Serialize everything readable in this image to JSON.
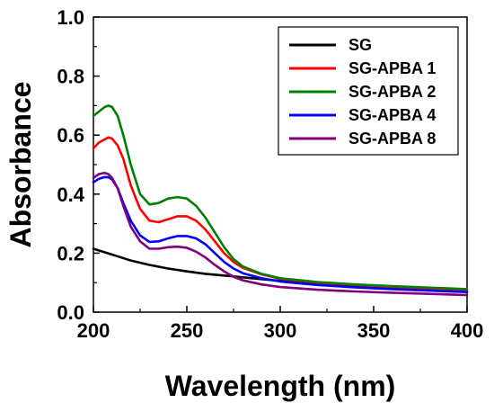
{
  "chart_data": {
    "type": "line",
    "title": "",
    "xlabel": "Wavelength (nm)",
    "ylabel": "Absorbance",
    "xlim": [
      200,
      400
    ],
    "ylim": [
      0.0,
      1.0
    ],
    "xticks": [
      "200",
      "250",
      "300",
      "350",
      "400"
    ],
    "yticks": [
      "0.0",
      "0.2",
      "0.4",
      "0.6",
      "0.8",
      "1.0"
    ],
    "grid": false,
    "legend_position": "top-right",
    "series": [
      {
        "name": "SG",
        "color": "#000000",
        "x": [
          200,
          205,
          210,
          220,
          230,
          240,
          250,
          260,
          270,
          280,
          290,
          300,
          320,
          340,
          360,
          380,
          400
        ],
        "y": [
          0.215,
          0.205,
          0.195,
          0.175,
          0.16,
          0.148,
          0.138,
          0.13,
          0.124,
          0.118,
          0.112,
          0.106,
          0.098,
          0.09,
          0.082,
          0.076,
          0.07
        ]
      },
      {
        "name": "SG-APBA 1",
        "color": "#ff0000",
        "x": [
          200,
          203,
          206,
          208,
          210,
          213,
          216,
          220,
          225,
          230,
          235,
          240,
          245,
          250,
          255,
          260,
          265,
          270,
          275,
          280,
          290,
          300,
          320,
          340,
          360,
          380,
          400
        ],
        "y": [
          0.555,
          0.575,
          0.585,
          0.592,
          0.588,
          0.565,
          0.52,
          0.43,
          0.35,
          0.31,
          0.305,
          0.315,
          0.325,
          0.325,
          0.31,
          0.28,
          0.24,
          0.2,
          0.17,
          0.15,
          0.128,
          0.113,
          0.1,
          0.092,
          0.086,
          0.08,
          0.075
        ]
      },
      {
        "name": "SG-APBA 2",
        "color": "#008000",
        "x": [
          200,
          203,
          206,
          208,
          210,
          213,
          216,
          220,
          225,
          230,
          235,
          240,
          245,
          250,
          255,
          260,
          265,
          270,
          275,
          280,
          290,
          300,
          320,
          340,
          360,
          380,
          400
        ],
        "y": [
          0.665,
          0.68,
          0.695,
          0.7,
          0.695,
          0.665,
          0.6,
          0.5,
          0.4,
          0.365,
          0.37,
          0.385,
          0.39,
          0.385,
          0.36,
          0.32,
          0.27,
          0.22,
          0.18,
          0.155,
          0.13,
          0.115,
          0.102,
          0.094,
          0.088,
          0.083,
          0.078
        ]
      },
      {
        "name": "SG-APBA 4",
        "color": "#0000ff",
        "x": [
          200,
          203,
          206,
          208,
          210,
          213,
          216,
          220,
          225,
          230,
          235,
          240,
          245,
          250,
          255,
          260,
          265,
          270,
          275,
          280,
          290,
          300,
          320,
          340,
          360,
          380,
          400
        ],
        "y": [
          0.44,
          0.452,
          0.458,
          0.457,
          0.45,
          0.42,
          0.37,
          0.31,
          0.26,
          0.238,
          0.24,
          0.25,
          0.258,
          0.258,
          0.25,
          0.23,
          0.2,
          0.17,
          0.148,
          0.132,
          0.115,
          0.104,
          0.092,
          0.084,
          0.078,
          0.073,
          0.068
        ]
      },
      {
        "name": "SG-APBA 8",
        "color": "#800080",
        "x": [
          200,
          203,
          206,
          208,
          210,
          213,
          216,
          220,
          225,
          230,
          235,
          240,
          245,
          250,
          255,
          260,
          265,
          270,
          275,
          280,
          290,
          300,
          320,
          340,
          360,
          380,
          400
        ],
        "y": [
          0.455,
          0.468,
          0.472,
          0.468,
          0.455,
          0.42,
          0.36,
          0.29,
          0.24,
          0.215,
          0.215,
          0.22,
          0.222,
          0.218,
          0.205,
          0.185,
          0.16,
          0.138,
          0.12,
          0.108,
          0.094,
          0.085,
          0.076,
          0.07,
          0.066,
          0.062,
          0.058
        ]
      }
    ]
  }
}
